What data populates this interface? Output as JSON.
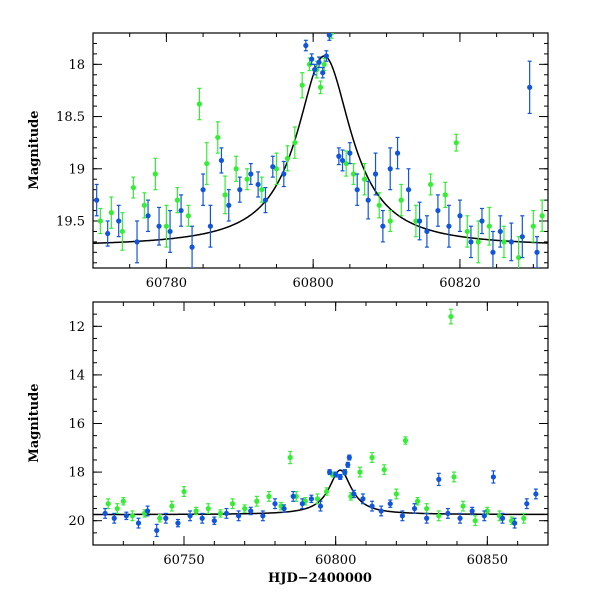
{
  "chart_data": [
    {
      "type": "scatter",
      "title": "",
      "xlabel": "",
      "ylabel": "Magnitude",
      "xlim": [
        60770,
        60832
      ],
      "ylim": [
        19.95,
        17.7
      ],
      "y_inverted": true,
      "xticks": [
        60780,
        60800,
        60820
      ],
      "yticks": [
        18,
        18.5,
        19,
        19.5
      ],
      "colors": {
        "green": "#33ee33",
        "blue": "#1155dd",
        "model": "#000000"
      },
      "model_curve": {
        "kind": "lorentzian",
        "baseline": 19.75,
        "peak_mag": 17.92,
        "t0": 60801.5,
        "width": 4.5
      },
      "series": [
        {
          "color": "green",
          "points": [
            [
              60771,
              19.5,
              0.12
            ],
            [
              60772.5,
              19.42,
              0.15
            ],
            [
              60774,
              19.6,
              0.18
            ],
            [
              60775.5,
              19.18,
              0.1
            ],
            [
              60777,
              19.35,
              0.12
            ],
            [
              60778.5,
              19.05,
              0.15
            ],
            [
              60780,
              19.55,
              0.2
            ],
            [
              60781.5,
              19.3,
              0.12
            ],
            [
              60783,
              19.45,
              0.1
            ],
            [
              60784.5,
              18.38,
              0.15
            ],
            [
              60785.5,
              18.95,
              0.2
            ],
            [
              60787,
              18.7,
              0.15
            ],
            [
              60788,
              19.25,
              0.18
            ],
            [
              60789.5,
              19.0,
              0.12
            ],
            [
              60791,
              19.1,
              0.1
            ],
            [
              60793,
              19.2,
              0.12
            ],
            [
              60795,
              19.0,
              0.15
            ],
            [
              60796.5,
              18.9,
              0.12
            ],
            [
              60797.5,
              18.75,
              0.15
            ],
            [
              60798.5,
              18.2,
              0.12
            ],
            [
              60799.5,
              18.0,
              0.06
            ],
            [
              60800.5,
              18.05,
              0.08
            ],
            [
              60801,
              18.22,
              0.06
            ],
            [
              60801.5,
              18.0,
              0.06
            ],
            [
              60802.5,
              17.7,
              0.05
            ],
            [
              60804.5,
              18.95,
              0.12
            ],
            [
              60805.5,
              19.05,
              0.1
            ],
            [
              60807,
              19.1,
              0.15
            ],
            [
              60809,
              19.35,
              0.12
            ],
            [
              60810.5,
              19.5,
              0.1
            ],
            [
              60812,
              19.3,
              0.15
            ],
            [
              60814,
              19.5,
              0.15
            ],
            [
              60816,
              19.15,
              0.1
            ],
            [
              60818,
              19.25,
              0.12
            ],
            [
              60819.5,
              18.75,
              0.08
            ],
            [
              60821,
              19.6,
              0.15
            ],
            [
              60822.5,
              19.7,
              0.2
            ],
            [
              60824,
              19.55,
              0.18
            ],
            [
              60826,
              19.7,
              0.15
            ],
            [
              60828,
              19.85,
              0.2
            ],
            [
              60830,
              19.55,
              0.15
            ],
            [
              60831.2,
              19.45,
              0.15
            ]
          ]
        },
        {
          "color": "blue",
          "points": [
            [
              60770.5,
              19.3,
              0.15
            ],
            [
              60772,
              19.62,
              0.12
            ],
            [
              60773.5,
              19.5,
              0.15
            ],
            [
              60776,
              19.7,
              0.2
            ],
            [
              60777.5,
              19.45,
              0.15
            ],
            [
              60779,
              19.55,
              0.18
            ],
            [
              60780.5,
              19.6,
              0.2
            ],
            [
              60782,
              19.4,
              0.15
            ],
            [
              60783.5,
              19.75,
              0.2
            ],
            [
              60785,
              19.2,
              0.15
            ],
            [
              60786,
              19.55,
              0.2
            ],
            [
              60787.5,
              18.92,
              0.12
            ],
            [
              60788.5,
              19.35,
              0.15
            ],
            [
              60790,
              19.2,
              0.12
            ],
            [
              60791.5,
              19.05,
              0.1
            ],
            [
              60792.5,
              19.15,
              0.12
            ],
            [
              60793.5,
              19.3,
              0.12
            ],
            [
              60794.5,
              18.98,
              0.1
            ],
            [
              60796,
              19.05,
              0.12
            ],
            [
              60799,
              17.82,
              0.05
            ],
            [
              60799.8,
              17.95,
              0.05
            ],
            [
              60800.2,
              18.05,
              0.05
            ],
            [
              60800.8,
              17.98,
              0.05
            ],
            [
              60801.3,
              18.08,
              0.05
            ],
            [
              60801.8,
              17.92,
              0.05
            ],
            [
              60802.2,
              17.72,
              0.05
            ],
            [
              60803.5,
              18.88,
              0.08
            ],
            [
              60804,
              18.92,
              0.1
            ],
            [
              60805,
              18.85,
              0.1
            ],
            [
              60806,
              19.2,
              0.15
            ],
            [
              60807.5,
              19.3,
              0.18
            ],
            [
              60808.5,
              19.05,
              0.2
            ],
            [
              60809.5,
              19.55,
              0.15
            ],
            [
              60810.5,
              19.0,
              0.2
            ],
            [
              60811.5,
              18.85,
              0.15
            ],
            [
              60813,
              19.2,
              0.2
            ],
            [
              60814.5,
              19.5,
              0.18
            ],
            [
              60815.5,
              19.6,
              0.15
            ],
            [
              60817,
              19.4,
              0.15
            ],
            [
              60818.5,
              19.55,
              0.2
            ],
            [
              60820,
              19.45,
              0.15
            ],
            [
              60821.5,
              19.7,
              0.15
            ],
            [
              60823,
              19.5,
              0.12
            ],
            [
              60824.5,
              19.8,
              0.2
            ],
            [
              60825.5,
              19.6,
              0.15
            ],
            [
              60827,
              19.7,
              0.18
            ],
            [
              60828.5,
              19.65,
              0.2
            ],
            [
              60829.5,
              18.22,
              0.25
            ],
            [
              60830.5,
              19.8,
              0.15
            ]
          ]
        }
      ]
    },
    {
      "type": "scatter",
      "title": "",
      "xlabel": "HJD−2400000",
      "ylabel": "Magnitude",
      "xlim": [
        60720,
        60870
      ],
      "ylim": [
        21,
        11
      ],
      "y_inverted": true,
      "xticks": [
        60750,
        60800,
        60850
      ],
      "yticks": [
        12,
        14,
        16,
        18,
        20
      ],
      "colors": {
        "green": "#33ee33",
        "blue": "#1155dd",
        "model": "#000000"
      },
      "model_curve": {
        "kind": "lorentzian",
        "baseline": 19.75,
        "peak_mag": 17.92,
        "t0": 60801.5,
        "width": 4.5
      },
      "series": [
        {
          "color": "green",
          "points": [
            [
              60725,
              19.3,
              0.2
            ],
            [
              60728,
              19.5,
              0.2
            ],
            [
              60730,
              19.2,
              0.15
            ],
            [
              60733,
              19.8,
              0.2
            ],
            [
              60737,
              19.7,
              0.15
            ],
            [
              60742,
              19.9,
              0.15
            ],
            [
              60746,
              19.4,
              0.2
            ],
            [
              60750,
              18.8,
              0.2
            ],
            [
              60754,
              19.6,
              0.15
            ],
            [
              60758,
              19.5,
              0.2
            ],
            [
              60762,
              19.7,
              0.15
            ],
            [
              60766,
              19.3,
              0.2
            ],
            [
              60770,
              19.5,
              0.15
            ],
            [
              60774,
              19.2,
              0.2
            ],
            [
              60778,
              19.0,
              0.2
            ],
            [
              60782,
              19.4,
              0.15
            ],
            [
              60785,
              17.4,
              0.25
            ],
            [
              60787,
              19.0,
              0.2
            ],
            [
              60790,
              19.2,
              0.15
            ],
            [
              60794,
              19.1,
              0.2
            ],
            [
              60797,
              18.8,
              0.15
            ],
            [
              60799,
              18.1,
              0.1
            ],
            [
              60803,
              18.0,
              0.1
            ],
            [
              60805,
              19.0,
              0.15
            ],
            [
              60808,
              18.0,
              0.2
            ],
            [
              60812,
              17.4,
              0.2
            ],
            [
              60816,
              17.9,
              0.2
            ],
            [
              60820,
              18.9,
              0.2
            ],
            [
              60823,
              16.7,
              0.15
            ],
            [
              60827,
              19.2,
              0.15
            ],
            [
              60830,
              19.5,
              0.2
            ],
            [
              60834,
              19.8,
              0.2
            ],
            [
              60838,
              11.6,
              0.3
            ],
            [
              60839,
              18.2,
              0.2
            ],
            [
              60842,
              19.4,
              0.2
            ],
            [
              60846,
              20.0,
              0.2
            ],
            [
              60850,
              19.6,
              0.15
            ],
            [
              60854,
              19.8,
              0.2
            ],
            [
              60858,
              20.0,
              0.15
            ],
            [
              60862,
              19.9,
              0.2
            ]
          ]
        },
        {
          "color": "blue",
          "points": [
            [
              60724,
              19.7,
              0.2
            ],
            [
              60727,
              19.9,
              0.2
            ],
            [
              60731,
              19.8,
              0.15
            ],
            [
              60735,
              20.1,
              0.2
            ],
            [
              60738,
              19.6,
              0.2
            ],
            [
              60741,
              20.4,
              0.25
            ],
            [
              60744,
              19.9,
              0.2
            ],
            [
              60748,
              20.1,
              0.15
            ],
            [
              60752,
              19.8,
              0.2
            ],
            [
              60756,
              19.9,
              0.2
            ],
            [
              60760,
              20.0,
              0.15
            ],
            [
              60764,
              19.7,
              0.2
            ],
            [
              60768,
              19.8,
              0.2
            ],
            [
              60772,
              19.6,
              0.15
            ],
            [
              60776,
              19.8,
              0.2
            ],
            [
              60780,
              19.3,
              0.2
            ],
            [
              60783,
              19.5,
              0.15
            ],
            [
              60786,
              19.0,
              0.2
            ],
            [
              60789,
              19.3,
              0.2
            ],
            [
              60792,
              19.1,
              0.15
            ],
            [
              60795,
              19.4,
              0.2
            ],
            [
              60798,
              18.0,
              0.1
            ],
            [
              60800,
              18.1,
              0.1
            ],
            [
              60801.5,
              18.2,
              0.1
            ],
            [
              60803,
              18.0,
              0.1
            ],
            [
              60804,
              17.7,
              0.1
            ],
            [
              60804.5,
              17.4,
              0.1
            ],
            [
              60806,
              18.9,
              0.15
            ],
            [
              60809,
              19.1,
              0.2
            ],
            [
              60812,
              19.4,
              0.2
            ],
            [
              60815,
              19.6,
              0.2
            ],
            [
              60818,
              19.3,
              0.15
            ],
            [
              60822,
              19.8,
              0.2
            ],
            [
              60826,
              19.5,
              0.2
            ],
            [
              60830,
              19.9,
              0.2
            ],
            [
              60834,
              18.3,
              0.25
            ],
            [
              60837,
              19.7,
              0.2
            ],
            [
              60841,
              19.9,
              0.2
            ],
            [
              60845,
              19.6,
              0.15
            ],
            [
              60849,
              19.8,
              0.2
            ],
            [
              60852,
              18.2,
              0.25
            ],
            [
              60855,
              19.9,
              0.2
            ],
            [
              60859,
              20.1,
              0.2
            ],
            [
              60863,
              19.3,
              0.2
            ],
            [
              60866,
              18.9,
              0.2
            ]
          ]
        }
      ]
    }
  ]
}
